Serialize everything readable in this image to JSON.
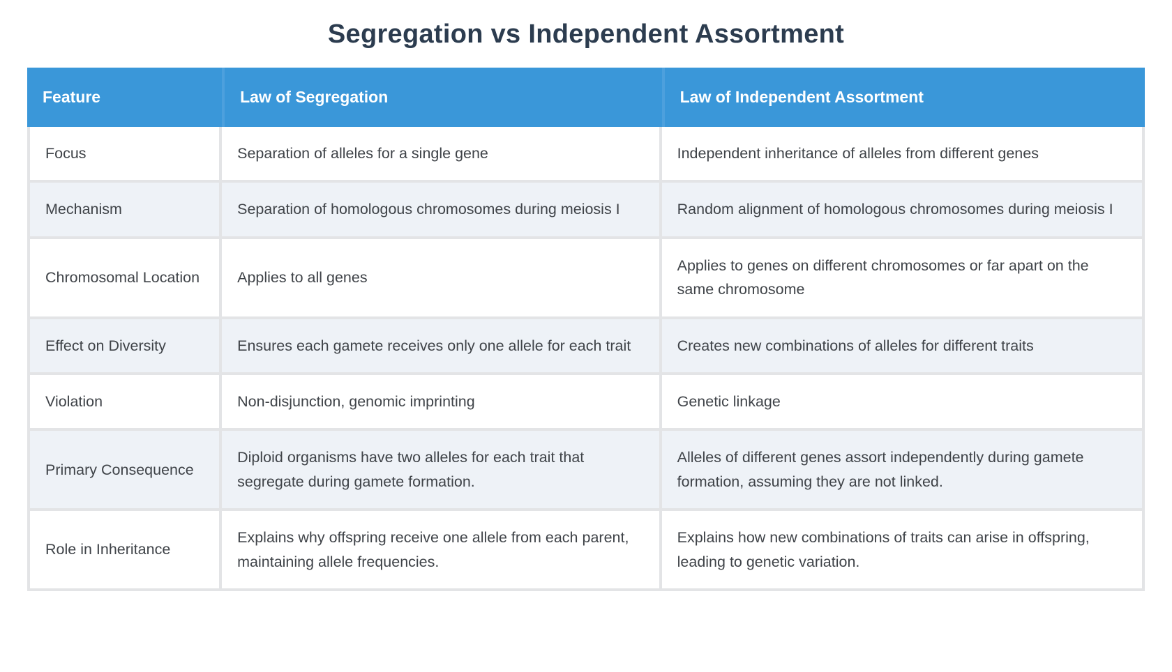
{
  "page": {
    "title": "Segregation vs Independent Assortment"
  },
  "colors": {
    "header_bg": "#3a97d9",
    "header_divider": "#4da0dd",
    "header_text": "#ffffff",
    "title_text": "#2c3c4f",
    "body_text": "#3f4348",
    "stripe_bg": "#eef2f7",
    "border": "#e3e4e6",
    "page_bg": "#ffffff"
  },
  "table": {
    "columns": [
      "Feature",
      "Law of Segregation",
      "Law of Independent Assortment"
    ],
    "rows": [
      {
        "feature": "Focus",
        "segregation": "Separation of alleles for a single gene",
        "assortment": "Independent inheritance of alleles from different genes"
      },
      {
        "feature": "Mechanism",
        "segregation": "Separation of homologous chromosomes during meiosis I",
        "assortment": "Random alignment of homologous chromosomes during meiosis I"
      },
      {
        "feature": "Chromosomal Location",
        "segregation": "Applies to all genes",
        "assortment": "Applies to genes on different chromosomes or far apart on the same chromosome"
      },
      {
        "feature": "Effect on Diversity",
        "segregation": "Ensures each gamete receives only one allele for each trait",
        "assortment": "Creates new combinations of alleles for different traits"
      },
      {
        "feature": "Violation",
        "segregation": "Non-disjunction, genomic imprinting",
        "assortment": "Genetic linkage"
      },
      {
        "feature": "Primary Consequence",
        "segregation": "Diploid organisms have two alleles for each trait that segregate during gamete formation.",
        "assortment": "Alleles of different genes assort independently during gamete formation, assuming they are not linked."
      },
      {
        "feature": "Role in Inheritance",
        "segregation": "Explains why offspring receive one allele from each parent, maintaining allele frequencies.",
        "assortment": "Explains how new combinations of traits can arise in offspring, leading to genetic variation."
      }
    ]
  }
}
